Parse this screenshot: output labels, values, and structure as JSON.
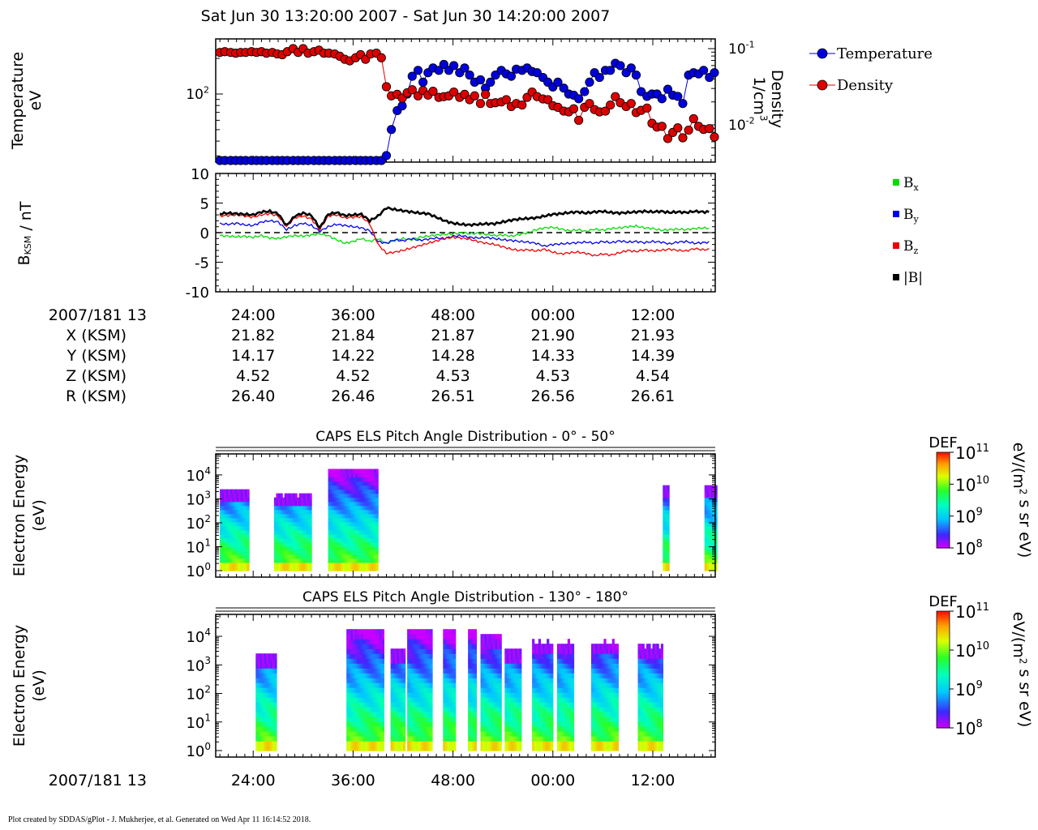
{
  "page_title": "Sat Jun 30 13:20:00 2007 - Sat Jun 30 14:20:00 2007",
  "footer": "Plot created by SDDAS/gPlot - J. Mukherjee, et al.  Generated on Wed Apr 11 16:14:52 2018.",
  "time_axis": {
    "row_label": "2007/181 13",
    "ticks": [
      "24:00",
      "36:00",
      "48:00",
      "00:00",
      "12:00"
    ]
  },
  "ephemeris": [
    {
      "label": "X (KSM)",
      "values": [
        "21.82",
        "21.84",
        "21.87",
        "21.90",
        "21.93"
      ]
    },
    {
      "label": "Y (KSM)",
      "values": [
        "14.17",
        "14.22",
        "14.28",
        "14.33",
        "14.39"
      ]
    },
    {
      "label": "Z (KSM)",
      "values": [
        "4.52",
        "4.52",
        "4.53",
        "4.53",
        "4.54"
      ]
    },
    {
      "label": "R (KSM)",
      "values": [
        "26.40",
        "26.46",
        "26.51",
        "26.56",
        "26.61"
      ]
    }
  ],
  "colors": {
    "temperature": "#0000dd",
    "density": "#dd0000",
    "bx": "#00dd00",
    "by": "#0000ee",
    "bz": "#ee0000",
    "bmag": "#000000"
  },
  "chart_data": [
    {
      "type": "scatter",
      "panel": "plasma-moments",
      "xlabel": "",
      "ylabel_lines": [
        "Temperature",
        "eV"
      ],
      "y_ticks": [
        "10^2"
      ],
      "y2label_lines": [
        "Density",
        "1/cm^3"
      ],
      "y2_ticks": [
        "10^-1",
        "10^-2"
      ],
      "x_range_minutes": [
        19.5,
        79.5
      ],
      "series": [
        {
          "name": "Temperature",
          "scale": "log10 eV",
          "x": [
            20.0,
            20.6,
            21.3,
            21.9,
            22.5,
            23.1,
            23.8,
            24.4,
            25.0,
            25.6,
            26.3,
            26.9,
            27.5,
            28.1,
            28.8,
            29.4,
            30.0,
            30.6,
            31.3,
            31.9,
            32.5,
            33.1,
            33.8,
            34.4,
            35.0,
            35.6,
            36.3,
            36.9,
            37.5,
            38.1,
            38.8,
            39.4,
            40.0,
            40.6,
            41.3,
            41.9,
            42.5,
            43.1,
            43.8,
            44.4,
            45.0,
            45.6,
            46.3,
            46.9,
            47.5,
            48.1,
            48.8,
            49.4,
            50.0,
            50.6,
            51.3,
            51.9,
            52.5,
            53.1,
            53.8,
            54.4,
            55.0,
            55.6,
            56.3,
            56.9,
            57.5,
            58.1,
            58.8,
            59.4,
            60.0,
            60.6,
            61.3,
            61.9,
            62.5,
            63.1,
            63.8,
            64.4,
            65.0,
            65.6,
            66.3,
            66.9,
            67.5,
            68.1,
            68.8,
            69.4,
            70.0,
            70.6,
            71.3,
            71.9,
            72.5,
            73.1,
            73.8,
            74.4,
            75.0,
            75.6,
            76.3,
            76.9,
            77.5,
            78.1,
            78.8,
            79.4
          ],
          "y": [
            1.3,
            1.31,
            1.32,
            1.3,
            1.31,
            1.29,
            1.3,
            1.28,
            1.29,
            1.27,
            1.28,
            1.26,
            1.27,
            1.3,
            1.29,
            1.32,
            1.31,
            1.33,
            1.31,
            1.32,
            1.31,
            1.34,
            1.32,
            1.35,
            1.33,
            1.34,
            1.36,
            1.33,
            1.35,
            1.34,
            1.37,
            1.38,
            1.48,
            1.7,
            1.86,
            1.9,
            2.0,
            2.15,
            2.2,
            2.1,
            2.18,
            2.22,
            2.2,
            2.25,
            2.2,
            2.24,
            2.18,
            2.22,
            2.16,
            2.1,
            2.12,
            2.05,
            2.1,
            2.16,
            2.2,
            2.17,
            2.15,
            2.21,
            2.2,
            2.22,
            2.19,
            2.18,
            2.14,
            2.1,
            2.06,
            2.1,
            2.05,
            2.0,
            1.99,
            1.96,
            2.02,
            2.1,
            2.18,
            2.14,
            2.2,
            2.2,
            2.26,
            2.24,
            2.18,
            2.22,
            2.16,
            2.02,
            1.98,
            2.0,
            2.0,
            1.96,
            2.04,
            1.99,
            1.98,
            1.92,
            2.16,
            2.18,
            2.17,
            2.2,
            2.14,
            2.18
          ]
        },
        {
          "name": "Density",
          "scale": "log10 1/cm^3",
          "x": [
            20.0,
            20.6,
            21.3,
            21.9,
            22.5,
            23.1,
            23.8,
            24.4,
            25.0,
            25.6,
            26.3,
            26.9,
            27.5,
            28.1,
            28.8,
            29.4,
            30.0,
            30.6,
            31.3,
            31.9,
            32.5,
            33.1,
            33.8,
            34.4,
            35.0,
            35.6,
            36.3,
            36.9,
            37.5,
            38.1,
            38.8,
            39.4,
            40.0,
            40.6,
            41.3,
            41.9,
            42.5,
            43.1,
            43.8,
            44.4,
            45.0,
            45.6,
            46.3,
            46.9,
            47.5,
            48.1,
            48.8,
            49.4,
            50.0,
            50.6,
            51.3,
            51.9,
            52.5,
            53.1,
            53.8,
            54.4,
            55.0,
            55.6,
            56.3,
            56.9,
            57.5,
            58.1,
            58.8,
            59.4,
            60.0,
            60.6,
            61.3,
            61.9,
            62.5,
            63.1,
            63.8,
            64.4,
            65.0,
            65.6,
            66.3,
            66.9,
            67.5,
            68.1,
            68.8,
            69.4,
            70.0,
            70.6,
            71.3,
            71.9,
            72.5,
            73.1,
            73.8,
            74.4,
            75.0,
            75.6,
            76.3,
            76.9,
            77.5,
            78.1,
            78.8,
            79.4
          ],
          "y": [
            -1.05,
            -1.04,
            -1.05,
            -1.06,
            -1.05,
            -1.05,
            -1.04,
            -1.05,
            -1.04,
            -1.06,
            -1.05,
            -1.07,
            -1.08,
            -1.04,
            -1.0,
            -1.05,
            -1.0,
            -1.06,
            -1.04,
            -1.02,
            -1.06,
            -1.06,
            -1.07,
            -1.1,
            -1.14,
            -1.16,
            -1.12,
            -1.08,
            -1.14,
            -1.07,
            -1.06,
            -1.12,
            -1.5,
            -1.62,
            -1.6,
            -1.65,
            -1.58,
            -1.54,
            -1.62,
            -1.55,
            -1.61,
            -1.56,
            -1.64,
            -1.63,
            -1.62,
            -1.57,
            -1.64,
            -1.6,
            -1.67,
            -1.62,
            -1.72,
            -1.6,
            -1.72,
            -1.71,
            -1.7,
            -1.67,
            -1.76,
            -1.72,
            -1.74,
            -1.64,
            -1.57,
            -1.63,
            -1.66,
            -1.67,
            -1.75,
            -1.77,
            -1.82,
            -1.83,
            -1.79,
            -1.94,
            -1.77,
            -1.72,
            -1.8,
            -1.83,
            -1.82,
            -1.74,
            -1.63,
            -1.71,
            -1.76,
            -1.72,
            -1.84,
            -1.81,
            -1.78,
            -1.98,
            -2.03,
            -2.02,
            -2.18,
            -2.1,
            -2.04,
            -2.17,
            -2.07,
            -1.92,
            -2.02,
            -2.06,
            -2.05,
            -2.16
          ]
        }
      ]
    },
    {
      "type": "line",
      "panel": "magnetic-field",
      "ylabel": "B_KSM / nT",
      "ylim": [
        -10,
        10
      ],
      "y_ticks": [
        "10",
        "5",
        "0",
        "-5",
        "-10"
      ],
      "zero_line": "dashed",
      "x_range_minutes": [
        19.5,
        79.5
      ],
      "x": [
        20,
        21,
        22,
        23,
        24,
        25,
        26,
        27,
        28,
        29,
        30,
        31,
        32,
        33,
        34,
        35,
        36,
        37,
        38,
        39,
        40,
        41,
        42,
        43,
        44,
        45,
        46,
        47,
        48,
        49,
        50,
        51,
        52,
        53,
        54,
        55,
        56,
        57,
        58,
        59,
        60,
        61,
        62,
        63,
        64,
        65,
        66,
        67,
        68,
        69,
        70,
        71,
        72,
        73,
        74,
        75,
        76,
        77,
        78,
        79
      ],
      "series": [
        {
          "name": "Bx",
          "legend": "B_x",
          "values": [
            -0.5,
            -0.6,
            -0.7,
            -0.6,
            -0.8,
            -0.5,
            -0.9,
            -1.0,
            -0.7,
            -0.5,
            -0.6,
            -0.4,
            -0.2,
            -0.5,
            -1.2,
            -1.8,
            -1.5,
            -1.0,
            -1.5,
            -1.0,
            -1.8,
            -1.3,
            -1.0,
            -1.2,
            -0.8,
            -0.6,
            -0.4,
            -0.3,
            -0.2,
            0.0,
            -0.2,
            -0.1,
            -0.3,
            -0.5,
            -0.4,
            -0.6,
            -0.3,
            0.0,
            0.5,
            0.8,
            0.9,
            0.6,
            0.3,
            0.5,
            0.2,
            0.6,
            0.4,
            0.7,
            0.8,
            1.0,
            1.1,
            0.8,
            0.7,
            0.4,
            0.5,
            0.6,
            0.5,
            0.7,
            0.8,
            0.7
          ]
        },
        {
          "name": "By",
          "legend": "B_y",
          "values": [
            1.5,
            1.4,
            1.6,
            1.3,
            1.2,
            1.8,
            2.0,
            1.8,
            0.5,
            1.2,
            1.6,
            1.2,
            0.2,
            1.0,
            1.4,
            1.2,
            1.0,
            0.8,
            0.3,
            -1.5,
            -1.8,
            -1.2,
            -1.4,
            -1.0,
            -1.3,
            -1.1,
            -0.9,
            -1.0,
            -0.6,
            -0.5,
            -0.8,
            -0.9,
            -0.8,
            -1.0,
            -1.2,
            -1.3,
            -1.5,
            -1.6,
            -1.8,
            -2.3,
            -2.0,
            -1.9,
            -1.8,
            -1.7,
            -1.6,
            -1.8,
            -1.5,
            -1.7,
            -1.4,
            -1.6,
            -1.5,
            -1.7,
            -1.5,
            -1.6,
            -1.9,
            -1.6,
            -1.5,
            -1.8,
            -1.7,
            -1.6
          ]
        },
        {
          "name": "Bz",
          "legend": "B_z",
          "values": [
            2.8,
            2.9,
            3.0,
            2.8,
            2.6,
            3.0,
            3.2,
            2.8,
            1.0,
            2.5,
            2.8,
            2.3,
            0.5,
            2.8,
            3.0,
            2.5,
            2.6,
            2.7,
            1.5,
            -2.0,
            -3.5,
            -3.3,
            -3.0,
            -2.6,
            -2.2,
            -1.8,
            -1.4,
            -1.0,
            -0.8,
            -0.9,
            -1.1,
            -1.5,
            -1.8,
            -2.0,
            -2.4,
            -2.8,
            -3.0,
            -2.9,
            -3.1,
            -2.8,
            -3.3,
            -3.6,
            -3.4,
            -3.3,
            -3.5,
            -3.9,
            -3.6,
            -3.8,
            -3.4,
            -3.0,
            -3.2,
            -2.9,
            -3.1,
            -3.0,
            -2.8,
            -3.0,
            -3.1,
            -2.7,
            -2.9,
            -2.8
          ]
        },
        {
          "name": "|B|",
          "legend": "|B|",
          "values": [
            3.2,
            3.3,
            3.2,
            3.1,
            3.0,
            3.5,
            3.6,
            3.2,
            1.2,
            2.8,
            3.3,
            2.9,
            0.8,
            3.1,
            3.4,
            2.9,
            3.0,
            3.1,
            2.0,
            2.8,
            4.2,
            3.9,
            3.7,
            3.5,
            3.3,
            3.2,
            2.6,
            2.0,
            1.6,
            1.4,
            1.3,
            1.4,
            1.5,
            1.5,
            1.8,
            2.1,
            2.3,
            2.4,
            2.5,
            2.8,
            3.1,
            3.2,
            3.4,
            3.5,
            3.3,
            3.5,
            3.6,
            3.4,
            3.3,
            3.4,
            3.5,
            3.6,
            3.5,
            3.6,
            3.4,
            3.5,
            3.4,
            3.6,
            3.5,
            3.5
          ]
        }
      ]
    },
    {
      "type": "heatmap",
      "panel": "caps-els-0-50",
      "title": "CAPS ELS Pitch Angle Distribution - 0° - 50°",
      "ylabel_lines": [
        "Electron Energy",
        "(eV)"
      ],
      "y_ticks": [
        "10^0",
        "10^1",
        "10^2",
        "10^3",
        "10^4"
      ],
      "colorbar": {
        "label": "DEF",
        "units": "eV/(m^2 s sr eV)",
        "ticks": [
          "10^11",
          "10^10",
          "10^9",
          "10^8"
        ]
      },
      "x_range_minutes": [
        19.5,
        79.5
      ],
      "data_intervals": [
        {
          "start": 20.0,
          "end": 23.5,
          "top_log_eV": 3.3
        },
        {
          "start": 26.5,
          "end": 30.8,
          "top_log_eV": 3.1
        },
        {
          "start": 33.0,
          "end": 39.0,
          "top_log_eV": 4.2
        },
        {
          "start": 73.2,
          "end": 73.8,
          "top_log_eV": 3.5
        },
        {
          "start": 78.2,
          "end": 79.5,
          "top_log_eV": 3.5
        }
      ]
    },
    {
      "type": "heatmap",
      "panel": "caps-els-130-180",
      "title": "CAPS ELS Pitch Angle Distribution - 130° - 180°",
      "ylabel_lines": [
        "Electron Energy",
        "(eV)"
      ],
      "y_ticks": [
        "10^0",
        "10^1",
        "10^2",
        "10^3",
        "10^4"
      ],
      "colorbar": {
        "label": "DEF",
        "units": "eV/(m^2 s sr eV)",
        "ticks": [
          "10^11",
          "10^10",
          "10^9",
          "10^8"
        ]
      },
      "x_range_minutes": [
        19.5,
        79.5
      ],
      "data_intervals": [
        {
          "start": 24.3,
          "end": 26.7,
          "top_log_eV": 3.3
        },
        {
          "start": 35.2,
          "end": 39.5,
          "top_log_eV": 4.2
        },
        {
          "start": 40.5,
          "end": 42.2,
          "top_log_eV": 3.5
        },
        {
          "start": 42.5,
          "end": 45.5,
          "top_log_eV": 4.2
        },
        {
          "start": 46.8,
          "end": 48.3,
          "top_log_eV": 4.2
        },
        {
          "start": 49.8,
          "end": 50.8,
          "top_log_eV": 4.2
        },
        {
          "start": 51.3,
          "end": 53.8,
          "top_log_eV": 4.0
        },
        {
          "start": 54.2,
          "end": 56.0,
          "top_log_eV": 3.5
        },
        {
          "start": 57.5,
          "end": 59.8,
          "top_log_eV": 3.7
        },
        {
          "start": 60.5,
          "end": 62.3,
          "top_log_eV": 3.7
        },
        {
          "start": 64.6,
          "end": 67.8,
          "top_log_eV": 3.7
        },
        {
          "start": 70.2,
          "end": 73.0,
          "top_log_eV": 3.6
        }
      ]
    }
  ]
}
